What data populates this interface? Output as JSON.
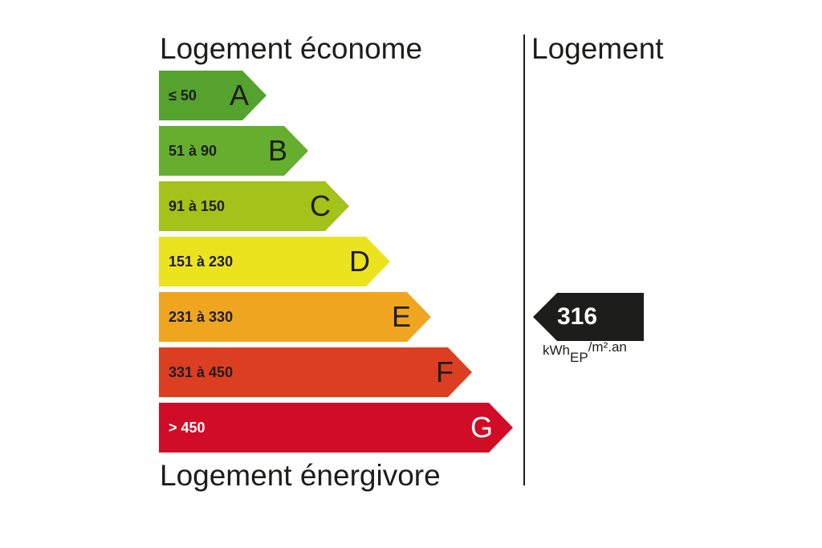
{
  "labels": {
    "top": "Logement économe",
    "bottom": "Logement énergivore",
    "column": "Logement"
  },
  "bands": [
    {
      "letter": "A",
      "range": "≤ 50",
      "color": "#55a22f"
    },
    {
      "letter": "B",
      "range": "51 à 90",
      "color": "#66ae2d"
    },
    {
      "letter": "C",
      "range": "91 à 150",
      "color": "#a3c21a"
    },
    {
      "letter": "D",
      "range": "151 à 230",
      "color": "#ece31f"
    },
    {
      "letter": "E",
      "range": "231 à 330",
      "color": "#f0a521"
    },
    {
      "letter": "F",
      "range": "331 à 450",
      "color": "#dc3e22"
    },
    {
      "letter": "G",
      "range": "> 450",
      "color": "#d10c26"
    }
  ],
  "consumption": {
    "value": "316",
    "unit_main": "kWh",
    "unit_sub": "EP",
    "unit_tail": "/m².an",
    "color": "#1d1d1b"
  }
}
